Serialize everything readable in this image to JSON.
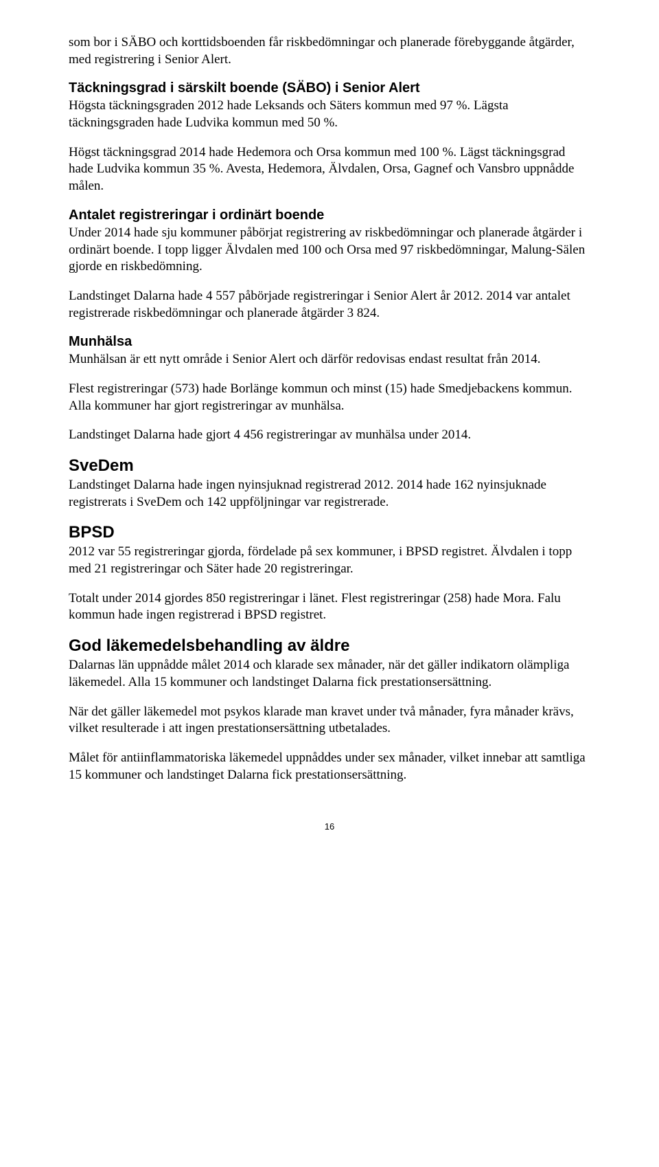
{
  "intro_para": "som bor i SÄBO och korttidsboenden får riskbedömningar och planerade förebyggande åtgärder, med registrering i Senior Alert.",
  "sec1": {
    "heading": "Täckningsgrad i särskilt boende (SÄBO) i Senior Alert",
    "para1": "Högsta täckningsgraden 2012 hade Leksands och Säters kommun med 97 %. Lägsta täckningsgraden hade Ludvika kommun med 50 %.",
    "para2": "Högst täckningsgrad 2014 hade Hedemora och Orsa kommun med 100 %. Lägst täckningsgrad hade Ludvika kommun 35 %. Avesta, Hedemora, Älvdalen, Orsa, Gagnef och Vansbro uppnådde målen."
  },
  "sec2": {
    "heading": "Antalet registreringar i ordinärt boende",
    "para1": "Under 2014 hade sju kommuner påbörjat registrering av riskbedömningar och planerade åtgärder i ordinärt boende. I topp ligger Älvdalen med 100 och Orsa med 97 riskbedömningar, Malung-Sälen gjorde en riskbedömning.",
    "para2": "Landstinget Dalarna hade 4 557 påbörjade registreringar i Senior Alert år 2012. 2014 var antalet registrerade riskbedömningar och planerade åtgärder 3 824."
  },
  "sec3": {
    "heading": "Munhälsa",
    "para1": "Munhälsan är ett nytt område i Senior Alert och därför redovisas endast resultat från 2014.",
    "para2": "Flest registreringar (573) hade Borlänge kommun och minst (15) hade Smedjebackens kommun. Alla kommuner har gjort registreringar av munhälsa.",
    "para3": "Landstinget Dalarna hade gjort 4 456 registreringar av munhälsa under 2014."
  },
  "sec4": {
    "heading": "SveDem",
    "para1": "Landstinget Dalarna hade ingen nyinsjuknad registrerad 2012. 2014 hade 162 nyinsjuknade registrerats i SveDem och 142 uppföljningar var registrerade."
  },
  "sec5": {
    "heading": "BPSD",
    "para1": "2012 var 55 registreringar gjorda, fördelade på sex kommuner, i BPSD registret. Älvdalen i topp med 21 registreringar och Säter hade 20 registreringar.",
    "para2": "Totalt under 2014 gjordes 850 registreringar i länet. Flest registreringar (258) hade Mora. Falu kommun hade ingen registrerad i BPSD registret."
  },
  "sec6": {
    "heading": "God läkemedelsbehandling av äldre",
    "para1": "Dalarnas län uppnådde målet 2014 och klarade sex månader, när det gäller indikatorn olämpliga läkemedel. Alla 15 kommuner och landstinget Dalarna fick prestationsersättning.",
    "para2": "När det gäller läkemedel mot psykos klarade man kravet under två månader, fyra månader krävs, vilket resulterade i att ingen prestationsersättning utbetalades.",
    "para3": "Målet för antiinflammatoriska läkemedel uppnåddes under sex månader, vilket innebar att samtliga 15 kommuner och landstinget Dalarna fick prestationsersättning."
  },
  "page_number": "16"
}
